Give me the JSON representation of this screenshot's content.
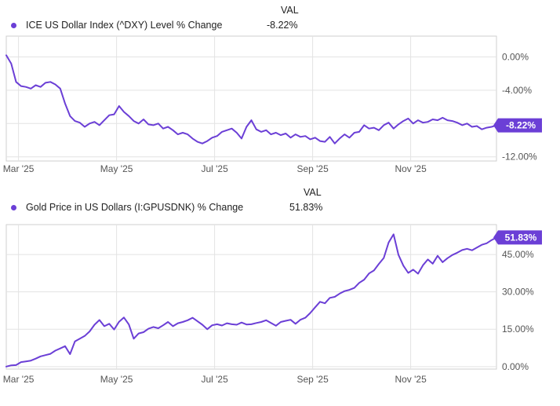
{
  "colors": {
    "series": "#6b3fd6",
    "grid": "#e3e3e3",
    "axis": "#cfcfcf",
    "badge": "#6b3fd6"
  },
  "chart_data": [
    {
      "type": "line",
      "legend": "ICE US Dollar Index (^DXY) Level % Change",
      "value_header": "VAL",
      "value_label": "-8.22%",
      "badge": "-8.22%",
      "xlabel": "",
      "ylabel": "",
      "ylim": [
        -12.5,
        2.5
      ],
      "xlim": [
        0,
        10
      ],
      "grid": true,
      "x_ticks": [
        {
          "x": 0.25,
          "label": "Mar '25"
        },
        {
          "x": 2.25,
          "label": "May '25"
        },
        {
          "x": 4.25,
          "label": "Jul '25"
        },
        {
          "x": 6.25,
          "label": "Sep '25"
        },
        {
          "x": 8.25,
          "label": "Nov '25"
        }
      ],
      "y_ticks": [
        {
          "y": 0,
          "label": "0.00%"
        },
        {
          "y": -4,
          "label": "-4.00%"
        },
        {
          "y": -8,
          "label": "-8.00%"
        },
        {
          "y": -12,
          "label": "-12.00%"
        }
      ],
      "x": [
        0,
        0.1,
        0.2,
        0.3,
        0.4,
        0.5,
        0.6,
        0.7,
        0.8,
        0.9,
        1.0,
        1.1,
        1.2,
        1.3,
        1.4,
        1.5,
        1.6,
        1.7,
        1.8,
        1.9,
        2.0,
        2.1,
        2.2,
        2.3,
        2.4,
        2.5,
        2.6,
        2.7,
        2.8,
        2.9,
        3.0,
        3.1,
        3.2,
        3.3,
        3.4,
        3.5,
        3.6,
        3.7,
        3.8,
        3.9,
        4.0,
        4.1,
        4.2,
        4.3,
        4.4,
        4.5,
        4.6,
        4.7,
        4.8,
        4.9,
        5.0,
        5.1,
        5.2,
        5.3,
        5.4,
        5.5,
        5.6,
        5.7,
        5.8,
        5.9,
        6.0,
        6.1,
        6.2,
        6.3,
        6.4,
        6.5,
        6.6,
        6.7,
        6.8,
        6.9,
        7.0,
        7.1,
        7.2,
        7.3,
        7.4,
        7.5,
        7.6,
        7.7,
        7.8,
        7.9,
        8.0,
        8.1,
        8.2,
        8.3,
        8.4,
        8.5,
        8.6,
        8.7,
        8.8,
        8.9,
        9.0,
        9.1,
        9.2,
        9.3,
        9.4,
        9.5,
        9.6,
        9.7,
        9.8,
        9.9,
        10.0
      ],
      "values": [
        0.2,
        -0.8,
        -3.0,
        -3.5,
        -3.6,
        -3.8,
        -3.4,
        -3.6,
        -3.1,
        -3.0,
        -3.3,
        -3.8,
        -5.6,
        -7.1,
        -7.7,
        -7.9,
        -8.4,
        -8.0,
        -7.8,
        -8.2,
        -7.6,
        -7.0,
        -6.9,
        -5.9,
        -6.6,
        -7.1,
        -7.7,
        -8.0,
        -7.5,
        -8.1,
        -8.2,
        -8.0,
        -8.6,
        -8.4,
        -8.8,
        -9.3,
        -9.1,
        -9.3,
        -9.8,
        -10.2,
        -10.4,
        -10.1,
        -9.7,
        -9.5,
        -9.0,
        -8.8,
        -8.6,
        -9.1,
        -9.8,
        -8.4,
        -7.6,
        -8.7,
        -9.0,
        -8.8,
        -9.3,
        -9.1,
        -9.4,
        -9.2,
        -9.7,
        -9.3,
        -9.6,
        -9.5,
        -9.9,
        -9.7,
        -10.1,
        -10.2,
        -9.6,
        -10.4,
        -9.8,
        -9.3,
        -9.7,
        -9.1,
        -9.0,
        -8.2,
        -8.6,
        -8.5,
        -8.8,
        -8.2,
        -7.9,
        -8.6,
        -8.1,
        -7.7,
        -7.4,
        -8.0,
        -7.6,
        -7.9,
        -7.8,
        -7.5,
        -7.6,
        -7.3,
        -7.6,
        -7.7,
        -7.9,
        -8.2,
        -8.0,
        -8.4,
        -8.3,
        -8.7,
        -8.5,
        -8.4,
        -8.22
      ]
    },
    {
      "type": "line",
      "legend": "Gold Price in US Dollars (I:GPUSDNK) % Change",
      "value_header": "VAL",
      "value_label": "51.83%",
      "badge": "51.83%",
      "xlabel": "",
      "ylabel": "",
      "ylim": [
        -1,
        57
      ],
      "xlim": [
        0,
        10
      ],
      "grid": true,
      "x_ticks": [
        {
          "x": 0.25,
          "label": "Mar '25"
        },
        {
          "x": 2.25,
          "label": "May '25"
        },
        {
          "x": 4.25,
          "label": "Jul '25"
        },
        {
          "x": 6.25,
          "label": "Sep '25"
        },
        {
          "x": 8.25,
          "label": "Nov '25"
        }
      ],
      "y_ticks": [
        {
          "y": 0,
          "label": "0.00%"
        },
        {
          "y": 15,
          "label": "15.00%"
        },
        {
          "y": 30,
          "label": "30.00%"
        },
        {
          "y": 45,
          "label": "45.00%"
        }
      ],
      "x": [
        0,
        0.1,
        0.2,
        0.3,
        0.4,
        0.5,
        0.6,
        0.7,
        0.8,
        0.9,
        1.0,
        1.1,
        1.2,
        1.3,
        1.4,
        1.5,
        1.6,
        1.7,
        1.8,
        1.9,
        2.0,
        2.1,
        2.2,
        2.3,
        2.4,
        2.5,
        2.6,
        2.7,
        2.8,
        2.9,
        3.0,
        3.1,
        3.2,
        3.3,
        3.4,
        3.5,
        3.6,
        3.7,
        3.8,
        3.9,
        4.0,
        4.1,
        4.2,
        4.3,
        4.4,
        4.5,
        4.6,
        4.7,
        4.8,
        4.9,
        5.0,
        5.1,
        5.2,
        5.3,
        5.4,
        5.5,
        5.6,
        5.7,
        5.8,
        5.9,
        6.0,
        6.1,
        6.2,
        6.3,
        6.4,
        6.5,
        6.6,
        6.7,
        6.8,
        6.9,
        7.0,
        7.1,
        7.2,
        7.3,
        7.4,
        7.5,
        7.6,
        7.7,
        7.8,
        7.9,
        8.0,
        8.1,
        8.2,
        8.3,
        8.4,
        8.5,
        8.6,
        8.7,
        8.8,
        8.9,
        9.0,
        9.1,
        9.2,
        9.3,
        9.4,
        9.5,
        9.6,
        9.7,
        9.8,
        9.9,
        10.0
      ],
      "values": [
        0.0,
        0.5,
        0.6,
        1.8,
        2.1,
        2.4,
        3.2,
        4.1,
        4.6,
        5.1,
        6.4,
        7.3,
        8.2,
        5.0,
        10.1,
        11.2,
        12.3,
        14.1,
        16.8,
        18.7,
        16.2,
        17.2,
        14.9,
        18.0,
        19.7,
        16.9,
        11.2,
        13.3,
        13.8,
        15.2,
        15.9,
        15.4,
        16.6,
        17.9,
        16.2,
        17.4,
        17.9,
        18.6,
        19.6,
        18.2,
        16.8,
        15.0,
        16.6,
        17.0,
        16.5,
        17.4,
        17.0,
        16.8,
        17.7,
        16.9,
        17.0,
        17.5,
        17.9,
        18.6,
        17.5,
        16.4,
        17.9,
        18.4,
        18.8,
        17.2,
        18.8,
        19.6,
        21.5,
        23.8,
        26.0,
        25.4,
        27.6,
        28.0,
        29.3,
        30.3,
        30.8,
        31.6,
        33.6,
        34.9,
        37.4,
        38.6,
        41.2,
        43.6,
        49.8,
        53.1,
        44.9,
        40.5,
        37.6,
        38.9,
        37.3,
        40.7,
        43.0,
        41.3,
        44.5,
        41.9,
        43.5,
        44.8,
        45.7,
        46.8,
        47.3,
        46.7,
        47.8,
        48.9,
        49.5,
        50.8,
        51.83
      ]
    }
  ]
}
